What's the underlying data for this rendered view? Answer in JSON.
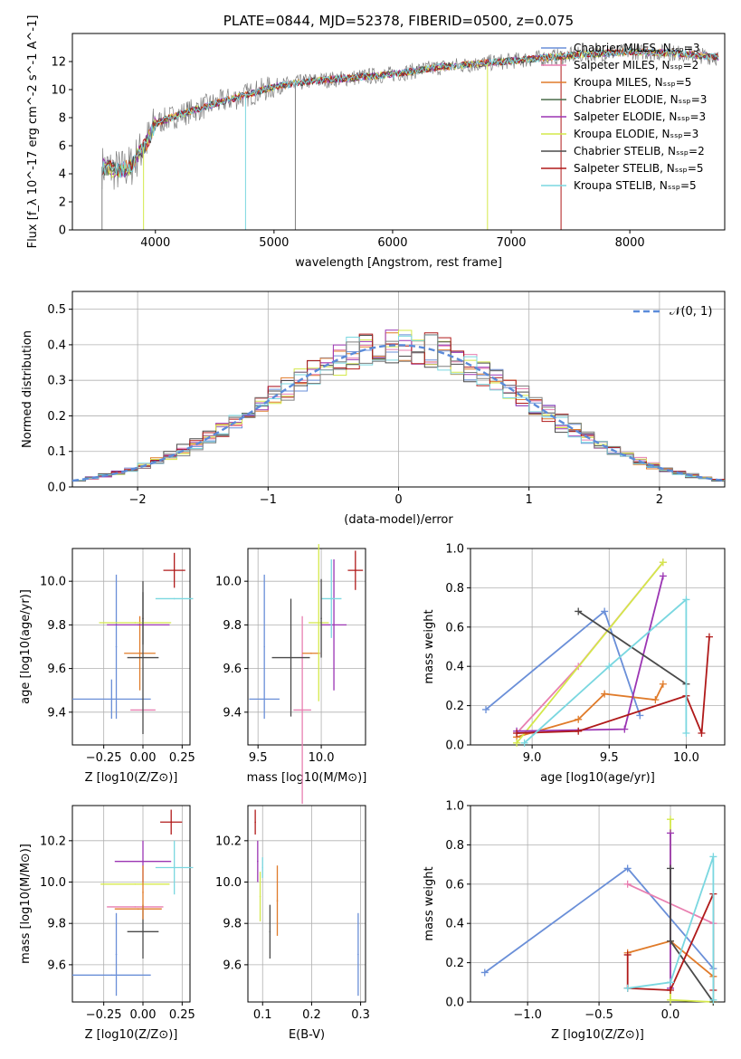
{
  "colors": {
    "blue": "#6a8fd8",
    "orange": "#e07b2a",
    "olive": "#9c8a2d",
    "gray": "#7f7f7f",
    "purple": "#9b35b3",
    "yellow": "#d4e84a",
    "dark": "#4a4a4a",
    "red": "#b01a1a",
    "cyan": "#7ad7e0",
    "pink": "#e87fb0"
  },
  "chart_data": [
    {
      "id": "spectrum",
      "type": "line",
      "title": "PLATE=0844, MJD=52378, FIBERID=0500, z=0.075",
      "xlabel": "wavelength [Angstrom, rest frame]",
      "ylabel": "Flux [f_λ 10^-17 erg cm^-2 s^-1 A^-1]",
      "xlim": [
        3300,
        8800
      ],
      "ylim": [
        0,
        14
      ],
      "xticks": [
        "4000",
        "5000",
        "6000",
        "7000",
        "8000"
      ],
      "yticks": [
        "0",
        "2",
        "4",
        "6",
        "8",
        "10",
        "12"
      ],
      "grid": false,
      "legend_position": "top-right",
      "data_range": [
        3550,
        8750
      ],
      "continuum": [
        [
          3550,
          4.5
        ],
        [
          3700,
          4.2
        ],
        [
          3800,
          4.6
        ],
        [
          3850,
          5.3
        ],
        [
          3900,
          5.9
        ],
        [
          3950,
          6.6
        ],
        [
          4000,
          7.6
        ],
        [
          4200,
          8.2
        ],
        [
          4500,
          9.0
        ],
        [
          4800,
          9.7
        ],
        [
          5000,
          10.2
        ],
        [
          5300,
          10.6
        ],
        [
          5600,
          10.8
        ],
        [
          6000,
          11.1
        ],
        [
          6400,
          11.6
        ],
        [
          6800,
          11.9
        ],
        [
          7200,
          12.2
        ],
        [
          7600,
          12.5
        ],
        [
          8000,
          12.7
        ],
        [
          8400,
          12.6
        ],
        [
          8750,
          12.3
        ]
      ],
      "series": [
        {
          "label": "Chabrier MILES, N_SSP=3",
          "color": "#6a8fd8"
        },
        {
          "label": "Salpeter MILES, N_SSP=2",
          "color": "#e87fb0"
        },
        {
          "label": "Kroupa MILES, N_SSP=5",
          "color": "#e07b2a"
        },
        {
          "label": "Chabrier ELODIE, N_SSP=3",
          "color": "#4a6b4a"
        },
        {
          "label": "Salpeter ELODIE, N_SSP=3",
          "color": "#9b35b3"
        },
        {
          "label": "Kroupa ELODIE, N_SSP=3",
          "color": "#d4e84a"
        },
        {
          "label": "Chabrier STELIB, N_SSP=2",
          "color": "#4a4a4a"
        },
        {
          "label": "Salpeter STELIB, N_SSP=5",
          "color": "#b01a1a"
        },
        {
          "label": "Kroupa STELIB, N_SSP=5",
          "color": "#7ad7e0"
        }
      ],
      "spikes": [
        {
          "x": 3550,
          "y": 0,
          "color": "#7f7f7f"
        },
        {
          "x": 3900,
          "y": 0,
          "color": "#d4e84a"
        },
        {
          "x": 4760,
          "y": 0,
          "color": "#7ad7e0"
        },
        {
          "x": 5180,
          "y": 0,
          "color": "#7f7f7f"
        },
        {
          "x": 6800,
          "y": 0,
          "color": "#d4e84a"
        },
        {
          "x": 7420,
          "y": 0,
          "color": "#b01a1a"
        }
      ]
    },
    {
      "id": "histogram",
      "type": "bar",
      "xlabel": "(data-model)/error",
      "ylabel": "Normed distribution",
      "xlim": [
        -2.5,
        2.5
      ],
      "ylim": [
        0,
        0.55
      ],
      "xticks": [
        "−2",
        "−1",
        "0",
        "1",
        "2"
      ],
      "yticks": [
        "0.0",
        "0.1",
        "0.2",
        "0.3",
        "0.4",
        "0.5"
      ],
      "grid": true,
      "legend": "𝒩(0, 1)",
      "legend_position": "top-right",
      "bin_width": 0.1,
      "series": [
        {
          "color": "#6a8fd8",
          "offset": 0.0
        },
        {
          "color": "#e07b2a",
          "offset": 0.02
        },
        {
          "color": "#e87fb0",
          "offset": -0.015
        },
        {
          "color": "#9b35b3",
          "offset": 0.01
        },
        {
          "color": "#d4e84a",
          "offset": -0.02
        },
        {
          "color": "#4a4a4a",
          "offset": 0.03
        },
        {
          "color": "#b01a1a",
          "offset": -0.01
        },
        {
          "color": "#7ad7e0",
          "offset": 0.015
        },
        {
          "color": "#7f7f7f",
          "offset": -0.025
        }
      ]
    },
    {
      "id": "age-vs-Z",
      "type": "scatter",
      "xlabel": "Z [log10(Z/Z⊙)]",
      "ylabel": "age [log10(age/yr)]",
      "xlim": [
        -0.45,
        0.3
      ],
      "ylim": [
        9.25,
        10.15
      ],
      "xticks": [
        "−0.25",
        "0.00",
        "0.25"
      ],
      "yticks": [
        "9.4",
        "9.6",
        "9.8",
        "10.0"
      ],
      "grid": true,
      "points": [
        {
          "x": -0.2,
          "y": 9.46,
          "xerr": 0.25,
          "yerr": 0.09,
          "color": "#6a8fd8"
        },
        {
          "x": -0.17,
          "y": 9.7,
          "xerr": 0.0,
          "yerr": 0.33,
          "color": "#6a8fd8"
        },
        {
          "x": 0.0,
          "y": 9.41,
          "xerr": 0.08,
          "yerr": 0.0,
          "color": "#e87fb0"
        },
        {
          "x": -0.02,
          "y": 9.67,
          "xerr": 0.1,
          "yerr": 0.17,
          "color": "#e07b2a"
        },
        {
          "x": 0.0,
          "y": 9.65,
          "xerr": 0.1,
          "yerr": 0.35,
          "color": "#4a4a4a"
        },
        {
          "x": -0.05,
          "y": 9.81,
          "xerr": 0.23,
          "yerr": 0.0,
          "color": "#d4e84a"
        },
        {
          "x": -0.03,
          "y": 9.8,
          "xerr": 0.2,
          "yerr": 0.0,
          "color": "#9b35b3"
        },
        {
          "x": 0.2,
          "y": 9.92,
          "xerr": 0.12,
          "yerr": 0.0,
          "color": "#7ad7e0"
        },
        {
          "x": 0.2,
          "y": 10.05,
          "xerr": 0.07,
          "yerr": 0.08,
          "color": "#b01a1a"
        },
        {
          "x": 0.0,
          "y": 9.83,
          "xerr": 0.0,
          "yerr": 0.12,
          "color": "#4a4a4a"
        }
      ]
    },
    {
      "id": "age-vs-mass",
      "type": "scatter",
      "xlabel": "mass [log10(M/M⊙)]",
      "ylabel": "",
      "xlim": [
        9.42,
        10.35
      ],
      "ylim": [
        9.25,
        10.15
      ],
      "xticks": [
        "9.5",
        "10.0"
      ],
      "yticks": [
        "9.4",
        "9.6",
        "9.8",
        "10.0"
      ],
      "grid": true,
      "points": [
        {
          "x": 9.55,
          "y": 9.46,
          "xerr": 0.12,
          "yerr": 0.0,
          "color": "#6a8fd8"
        },
        {
          "x": 9.55,
          "y": 9.7,
          "xerr": 0.0,
          "yerr": 0.33,
          "color": "#6a8fd8"
        },
        {
          "x": 9.85,
          "y": 9.41,
          "xerr": 0.07,
          "yerr": 0.43,
          "color": "#e87fb0"
        },
        {
          "x": 9.92,
          "y": 9.67,
          "xerr": 0.07,
          "yerr": 0.0,
          "color": "#e07b2a"
        },
        {
          "x": 9.76,
          "y": 9.65,
          "xerr": 0.15,
          "yerr": 0.27,
          "color": "#4a4a4a"
        },
        {
          "x": 9.98,
          "y": 9.81,
          "xerr": 0.08,
          "yerr": 0.36,
          "color": "#d4e84a"
        },
        {
          "x": 10.1,
          "y": 9.8,
          "xerr": 0.1,
          "yerr": 0.3,
          "color": "#9b35b3"
        },
        {
          "x": 10.08,
          "y": 9.92,
          "xerr": 0.08,
          "yerr": 0.18,
          "color": "#7ad7e0"
        },
        {
          "x": 10.27,
          "y": 10.05,
          "xerr": 0.06,
          "yerr": 0.09,
          "color": "#b01a1a"
        },
        {
          "x": 10.0,
          "y": 9.83,
          "xerr": 0.0,
          "yerr": 0.18,
          "color": "#4a4a4a"
        }
      ]
    },
    {
      "id": "weight-vs-age",
      "type": "line",
      "xlabel": "age [log10(age/yr)]",
      "ylabel": "mass weight",
      "xlim": [
        8.6,
        10.25
      ],
      "ylim": [
        0,
        1.0
      ],
      "xticks": [
        "9.0",
        "9.5",
        "10.0"
      ],
      "yticks": [
        "0.0",
        "0.2",
        "0.4",
        "0.6",
        "0.8",
        "1.0"
      ],
      "grid": true,
      "series": [
        {
          "color": "#6a8fd8",
          "x": [
            8.7,
            9.47,
            9.7
          ],
          "y": [
            0.18,
            0.68,
            0.15
          ]
        },
        {
          "color": "#e87fb0",
          "x": [
            8.9,
            9.3,
            9.85
          ],
          "y": [
            0.06,
            0.4,
            0.93
          ]
        },
        {
          "color": "#e07b2a",
          "x": [
            8.9,
            9.3,
            9.47,
            9.8,
            9.85
          ],
          "y": [
            0.04,
            0.13,
            0.26,
            0.23,
            0.31
          ]
        },
        {
          "color": "#d4e84a",
          "x": [
            8.9,
            9.85
          ],
          "y": [
            0.01,
            0.93
          ]
        },
        {
          "color": "#9b35b3",
          "x": [
            8.9,
            9.6,
            9.85
          ],
          "y": [
            0.07,
            0.08,
            0.86
          ]
        },
        {
          "color": "#4a4a4a",
          "x": [
            9.3,
            10.0
          ],
          "y": [
            0.68,
            0.31
          ]
        },
        {
          "color": "#b01a1a",
          "x": [
            8.9,
            9.3,
            10.0,
            10.1,
            10.15
          ],
          "y": [
            0.06,
            0.07,
            0.25,
            0.06,
            0.55
          ]
        },
        {
          "color": "#7ad7e0",
          "x": [
            8.95,
            9.5,
            10.0,
            10.0
          ],
          "y": [
            0.01,
            0.4,
            0.74,
            0.06
          ]
        }
      ]
    },
    {
      "id": "mass-vs-Z",
      "type": "scatter",
      "xlabel": "Z [log10(Z/Z⊙)]",
      "ylabel": "mass [log10(M/M⊙)]",
      "xlim": [
        -0.45,
        0.3
      ],
      "ylim": [
        9.42,
        10.37
      ],
      "xticks": [
        "−0.25",
        "0.00",
        "0.25"
      ],
      "yticks": [
        "9.6",
        "9.8",
        "10.0",
        "10.2"
      ],
      "grid": true,
      "points": [
        {
          "x": -0.2,
          "y": 9.55,
          "xerr": 0.25,
          "yerr": 0.0,
          "color": "#6a8fd8"
        },
        {
          "x": -0.17,
          "y": 9.65,
          "xerr": 0.0,
          "yerr": 0.2,
          "color": "#6a8fd8"
        },
        {
          "x": -0.05,
          "y": 9.88,
          "xerr": 0.18,
          "yerr": 0.0,
          "color": "#e87fb0"
        },
        {
          "x": -0.03,
          "y": 9.87,
          "xerr": 0.15,
          "yerr": 0.0,
          "color": "#e07b2a"
        },
        {
          "x": 0.0,
          "y": 9.76,
          "xerr": 0.1,
          "yerr": 0.13,
          "color": "#4a4a4a"
        },
        {
          "x": -0.05,
          "y": 9.99,
          "xerr": 0.22,
          "yerr": 0.0,
          "color": "#d4e84a"
        },
        {
          "x": 0.0,
          "y": 10.1,
          "xerr": 0.18,
          "yerr": 0.1,
          "color": "#9b35b3"
        },
        {
          "x": 0.2,
          "y": 10.07,
          "xerr": 0.12,
          "yerr": 0.13,
          "color": "#7ad7e0"
        },
        {
          "x": 0.18,
          "y": 10.29,
          "xerr": 0.07,
          "yerr": 0.06,
          "color": "#b01a1a"
        },
        {
          "x": 0.0,
          "y": 9.95,
          "xerr": 0.0,
          "yerr": 0.13,
          "color": "#e07b2a"
        }
      ]
    },
    {
      "id": "mass-vs-ebv",
      "type": "scatter",
      "xlabel": "E(B-V)",
      "ylabel": "",
      "xlim": [
        0.07,
        0.31
      ],
      "ylim": [
        9.42,
        10.37
      ],
      "xticks": [
        "0.1",
        "0.2",
        "0.3"
      ],
      "yticks": [
        "9.6",
        "9.8",
        "10.0",
        "10.2"
      ],
      "grid": true,
      "points": [
        {
          "x": 0.085,
          "y": 10.29,
          "xerr": 0.0,
          "yerr": 0.06,
          "color": "#b01a1a"
        },
        {
          "x": 0.09,
          "y": 10.1,
          "xerr": 0.0,
          "yerr": 0.1,
          "color": "#9b35b3"
        },
        {
          "x": 0.095,
          "y": 9.93,
          "xerr": 0.0,
          "yerr": 0.12,
          "color": "#d4e84a"
        },
        {
          "x": 0.1,
          "y": 10.07,
          "xerr": 0.0,
          "yerr": 0.05,
          "color": "#7ad7e0"
        },
        {
          "x": 0.115,
          "y": 9.76,
          "xerr": 0.0,
          "yerr": 0.13,
          "color": "#4a4a4a"
        },
        {
          "x": 0.13,
          "y": 9.91,
          "xerr": 0.0,
          "yerr": 0.17,
          "color": "#e07b2a"
        },
        {
          "x": 0.295,
          "y": 9.65,
          "xerr": 0.0,
          "yerr": 0.2,
          "color": "#6a8fd8"
        }
      ]
    },
    {
      "id": "weight-vs-Z",
      "type": "line",
      "xlabel": "Z [log10(Z/Z⊙)]",
      "ylabel": "mass weight",
      "xlim": [
        -1.4,
        0.38
      ],
      "ylim": [
        0,
        1.0
      ],
      "xticks": [
        "−1.0",
        "−0.5",
        "0.0"
      ],
      "yticks": [
        "0.0",
        "0.2",
        "0.4",
        "0.6",
        "0.8",
        "1.0"
      ],
      "grid": true,
      "series": [
        {
          "color": "#6a8fd8",
          "x": [
            -1.3,
            -0.3,
            0.3
          ],
          "y": [
            0.15,
            0.68,
            0.17
          ]
        },
        {
          "color": "#e87fb0",
          "x": [
            -0.3,
            0.3
          ],
          "y": [
            0.6,
            0.4
          ]
        },
        {
          "color": "#e07b2a",
          "x": [
            -0.3,
            0.0,
            0.3,
            0.3
          ],
          "y": [
            0.25,
            0.31,
            0.13,
            0.0
          ]
        },
        {
          "color": "#d4e84a",
          "x": [
            0.0,
            0.0,
            0.3
          ],
          "y": [
            0.93,
            0.01,
            0.0
          ]
        },
        {
          "color": "#9b35b3",
          "x": [
            0.0,
            0.0
          ],
          "y": [
            0.86,
            0.07
          ]
        },
        {
          "color": "#4a4a4a",
          "x": [
            0.0,
            0.0,
            0.3
          ],
          "y": [
            0.68,
            0.31,
            0.0
          ]
        },
        {
          "color": "#b01a1a",
          "x": [
            -0.3,
            -0.3,
            0.0,
            0.3,
            0.3
          ],
          "y": [
            0.24,
            0.07,
            0.06,
            0.55,
            0.06
          ]
        },
        {
          "color": "#7ad7e0",
          "x": [
            -0.3,
            0.0,
            0.3,
            0.3
          ],
          "y": [
            0.07,
            0.1,
            0.74,
            0.01
          ]
        }
      ]
    }
  ]
}
